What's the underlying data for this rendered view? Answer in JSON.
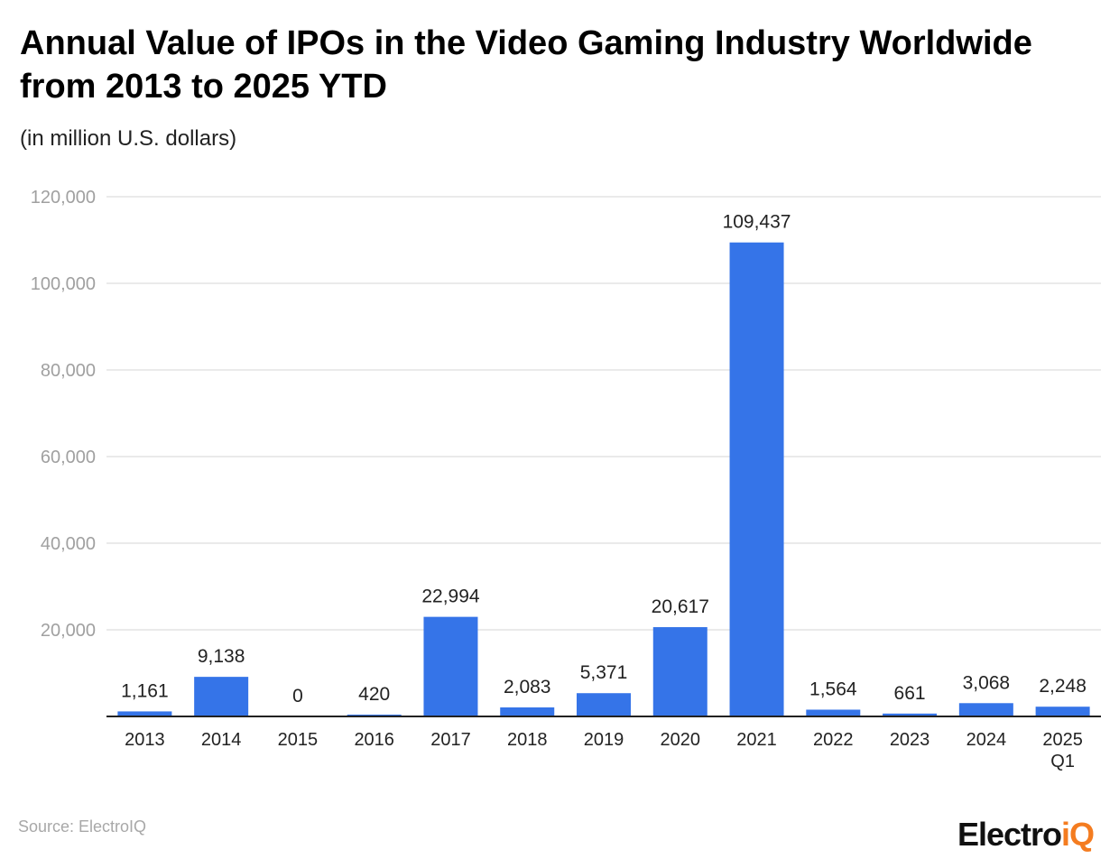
{
  "title": "Annual Value of IPOs in the Video Gaming Industry Worldwide from 2013 to 2025 YTD",
  "subtitle": "(in million U.S. dollars)",
  "source": "Source: ElectroIQ",
  "logo": {
    "part1": "Electro",
    "part2": "iQ"
  },
  "colors": {
    "bar": "#3574e8",
    "grid": "#e4e4e4",
    "axis": "#222222",
    "logo_accent": "#f47c20"
  },
  "chart_data": {
    "type": "bar",
    "categories": [
      "2013",
      "2014",
      "2015",
      "2016",
      "2017",
      "2018",
      "2019",
      "2020",
      "2021",
      "2022",
      "2023",
      "2024",
      "2025 Q1"
    ],
    "values": [
      1161,
      9138,
      0,
      420,
      22994,
      2083,
      5371,
      20617,
      109437,
      1564,
      661,
      3068,
      2248
    ],
    "value_labels": [
      "1,161",
      "9,138",
      "0",
      "420",
      "22,994",
      "2,083",
      "5,371",
      "20,617",
      "109,437",
      "1,564",
      "661",
      "3,068",
      "2,248"
    ],
    "title": "Annual Value of IPOs in the Video Gaming Industry Worldwide from 2013 to 2025 YTD",
    "ylabel": "",
    "xlabel": "",
    "ylim": [
      0,
      120000
    ],
    "yticks": [
      0,
      20000,
      40000,
      60000,
      80000,
      100000,
      120000
    ],
    "ytick_labels": [
      "",
      "20,000",
      "40,000",
      "60,000",
      "80,000",
      "100,000",
      "120,000"
    ],
    "grid": true,
    "legend": "none"
  }
}
